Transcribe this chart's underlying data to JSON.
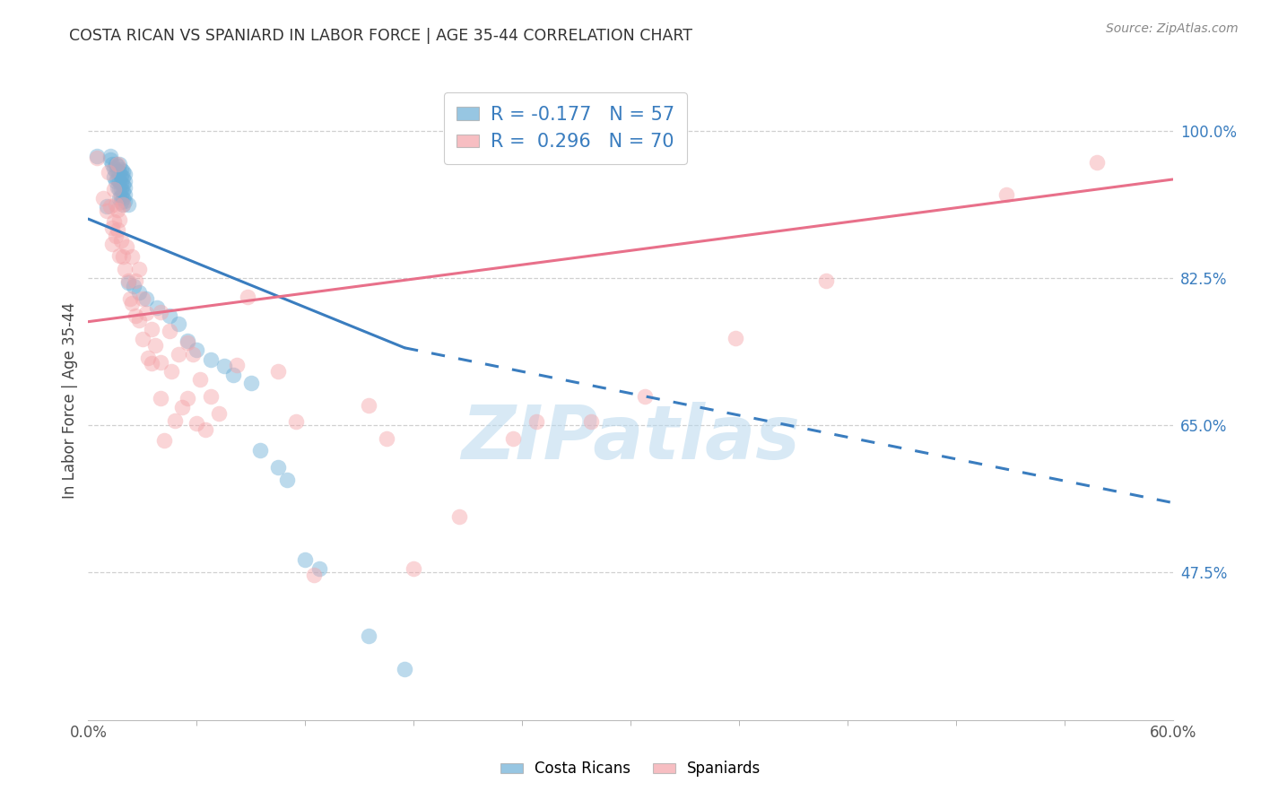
{
  "title": "COSTA RICAN VS SPANIARD IN LABOR FORCE | AGE 35-44 CORRELATION CHART",
  "source": "Source: ZipAtlas.com",
  "ylabel": "In Labor Force | Age 35-44",
  "ytick_vals": [
    1.0,
    0.825,
    0.65,
    0.475
  ],
  "ytick_labels": [
    "100.0%",
    "82.5%",
    "65.0%",
    "47.5%"
  ],
  "xmin": 0.0,
  "xmax": 0.6,
  "ymin": 0.3,
  "ymax": 1.06,
  "blue_color": "#6baed6",
  "blue_edge_color": "#5a9fc8",
  "blue_line_color": "#3a7dbf",
  "pink_color": "#f4a3a8",
  "pink_edge_color": "#e8909a",
  "pink_line_color": "#e8708a",
  "blue_r": "-0.177",
  "blue_n": "57",
  "pink_r": "0.296",
  "pink_n": "70",
  "blue_scatter": [
    [
      0.005,
      0.97
    ],
    [
      0.01,
      0.91
    ],
    [
      0.012,
      0.97
    ],
    [
      0.012,
      0.965
    ],
    [
      0.013,
      0.96
    ],
    [
      0.014,
      0.955
    ],
    [
      0.014,
      0.945
    ],
    [
      0.015,
      0.96
    ],
    [
      0.015,
      0.952
    ],
    [
      0.015,
      0.94
    ],
    [
      0.016,
      0.958
    ],
    [
      0.016,
      0.952
    ],
    [
      0.016,
      0.942
    ],
    [
      0.016,
      0.932
    ],
    [
      0.017,
      0.96
    ],
    [
      0.017,
      0.95
    ],
    [
      0.017,
      0.94
    ],
    [
      0.017,
      0.93
    ],
    [
      0.017,
      0.92
    ],
    [
      0.018,
      0.954
    ],
    [
      0.018,
      0.946
    ],
    [
      0.018,
      0.938
    ],
    [
      0.018,
      0.93
    ],
    [
      0.018,
      0.922
    ],
    [
      0.018,
      0.915
    ],
    [
      0.019,
      0.952
    ],
    [
      0.019,
      0.944
    ],
    [
      0.019,
      0.936
    ],
    [
      0.019,
      0.928
    ],
    [
      0.019,
      0.92
    ],
    [
      0.019,
      0.912
    ],
    [
      0.02,
      0.948
    ],
    [
      0.02,
      0.94
    ],
    [
      0.02,
      0.932
    ],
    [
      0.02,
      0.924
    ],
    [
      0.02,
      0.916
    ],
    [
      0.022,
      0.912
    ],
    [
      0.022,
      0.82
    ],
    [
      0.025,
      0.815
    ],
    [
      0.028,
      0.808
    ],
    [
      0.032,
      0.8
    ],
    [
      0.038,
      0.79
    ],
    [
      0.045,
      0.78
    ],
    [
      0.05,
      0.77
    ],
    [
      0.055,
      0.75
    ],
    [
      0.06,
      0.74
    ],
    [
      0.068,
      0.728
    ],
    [
      0.075,
      0.72
    ],
    [
      0.08,
      0.71
    ],
    [
      0.09,
      0.7
    ],
    [
      0.095,
      0.62
    ],
    [
      0.105,
      0.6
    ],
    [
      0.11,
      0.585
    ],
    [
      0.12,
      0.49
    ],
    [
      0.128,
      0.48
    ],
    [
      0.155,
      0.4
    ],
    [
      0.175,
      0.36
    ]
  ],
  "pink_scatter": [
    [
      0.005,
      0.968
    ],
    [
      0.008,
      0.92
    ],
    [
      0.01,
      0.905
    ],
    [
      0.011,
      0.95
    ],
    [
      0.012,
      0.91
    ],
    [
      0.013,
      0.885
    ],
    [
      0.013,
      0.865
    ],
    [
      0.014,
      0.93
    ],
    [
      0.014,
      0.892
    ],
    [
      0.015,
      0.912
    ],
    [
      0.015,
      0.875
    ],
    [
      0.016,
      0.96
    ],
    [
      0.016,
      0.906
    ],
    [
      0.016,
      0.882
    ],
    [
      0.017,
      0.894
    ],
    [
      0.017,
      0.852
    ],
    [
      0.018,
      0.87
    ],
    [
      0.019,
      0.912
    ],
    [
      0.019,
      0.85
    ],
    [
      0.02,
      0.836
    ],
    [
      0.021,
      0.862
    ],
    [
      0.022,
      0.822
    ],
    [
      0.023,
      0.8
    ],
    [
      0.024,
      0.85
    ],
    [
      0.024,
      0.795
    ],
    [
      0.026,
      0.822
    ],
    [
      0.026,
      0.78
    ],
    [
      0.028,
      0.835
    ],
    [
      0.028,
      0.775
    ],
    [
      0.03,
      0.8
    ],
    [
      0.03,
      0.752
    ],
    [
      0.032,
      0.783
    ],
    [
      0.033,
      0.73
    ],
    [
      0.035,
      0.764
    ],
    [
      0.035,
      0.724
    ],
    [
      0.037,
      0.745
    ],
    [
      0.04,
      0.784
    ],
    [
      0.04,
      0.725
    ],
    [
      0.04,
      0.682
    ],
    [
      0.042,
      0.632
    ],
    [
      0.045,
      0.762
    ],
    [
      0.046,
      0.714
    ],
    [
      0.048,
      0.655
    ],
    [
      0.05,
      0.734
    ],
    [
      0.052,
      0.672
    ],
    [
      0.055,
      0.748
    ],
    [
      0.055,
      0.682
    ],
    [
      0.058,
      0.734
    ],
    [
      0.06,
      0.652
    ],
    [
      0.062,
      0.704
    ],
    [
      0.065,
      0.645
    ],
    [
      0.068,
      0.684
    ],
    [
      0.072,
      0.664
    ],
    [
      0.082,
      0.722
    ],
    [
      0.088,
      0.802
    ],
    [
      0.105,
      0.714
    ],
    [
      0.115,
      0.654
    ],
    [
      0.125,
      0.472
    ],
    [
      0.155,
      0.674
    ],
    [
      0.165,
      0.634
    ],
    [
      0.18,
      0.48
    ],
    [
      0.205,
      0.542
    ],
    [
      0.235,
      0.634
    ],
    [
      0.248,
      0.654
    ],
    [
      0.278,
      0.654
    ],
    [
      0.308,
      0.684
    ],
    [
      0.358,
      0.754
    ],
    [
      0.408,
      0.822
    ],
    [
      0.508,
      0.924
    ],
    [
      0.558,
      0.962
    ]
  ],
  "blue_line_solid": [
    [
      0.0,
      0.895
    ],
    [
      0.175,
      0.742
    ]
  ],
  "blue_line_dashed": [
    [
      0.175,
      0.742
    ],
    [
      0.6,
      0.558
    ]
  ],
  "pink_line": [
    [
      0.0,
      0.773
    ],
    [
      0.6,
      0.942
    ]
  ],
  "watermark": "ZIPatlas",
  "watermark_color": "#b8d8ee",
  "background_color": "#ffffff",
  "grid_color": "#d0d0d0"
}
